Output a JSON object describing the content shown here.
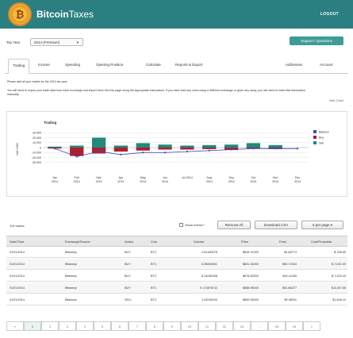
{
  "header": {
    "brand_bold": "Bitcoin",
    "brand_light": "Taxes",
    "logout": "LOGOUT"
  },
  "taxyear": {
    "label": "Tax Year",
    "value": "2014 (Premium)",
    "caret": "▼"
  },
  "support_button": "Support / Questions",
  "tabs": [
    {
      "label": "Trading",
      "active": true
    },
    {
      "label": "Income"
    },
    {
      "label": "Spending"
    },
    {
      "label": "Opening Position"
    },
    {
      "label": "Calculate"
    },
    {
      "label": "Reports & Export"
    },
    {
      "label": "Addresses"
    },
    {
      "label": "Account"
    }
  ],
  "notes": {
    "line1": "Please add all your trades for the 2014 tax year.",
    "line2": "You will need to export your trade data from each exchange and import them into this page using the appropriate instructions. If you have sold any coins using a different exchange or given any away, you will need to enter that information manually.",
    "hide_chart": "Hide Chart"
  },
  "chart_data": {
    "type": "bar",
    "title": "Trading",
    "ylabel": "Net USD",
    "ylim": [
      -40000,
      40000
    ],
    "yticks": [
      "30,000",
      "20,000",
      "10,000",
      "0",
      "-10,000",
      "-20,000",
      "-30,000"
    ],
    "ytick_values": [
      30000,
      20000,
      10000,
      0,
      -10000,
      -20000,
      -30000
    ],
    "categories": [
      "Jan\n2014",
      "Feb\n2014",
      "Mar\n2014",
      "Apr\n2014",
      "May\n2014",
      "Jun\n2014",
      "Jul 2014",
      "Aug\n2014",
      "Sep\n2014",
      "Oct\n2014",
      "Nov\n2014",
      "Dec\n2014"
    ],
    "category_lines": [
      [
        "Jan",
        "2014"
      ],
      [
        "Feb",
        "2014"
      ],
      [
        "Mar",
        "2014"
      ],
      [
        "Apr",
        "2014"
      ],
      [
        "May",
        "2014"
      ],
      [
        "Jun",
        "2014"
      ],
      [
        "Jul 2014",
        ""
      ],
      [
        "Aug",
        "2014"
      ],
      [
        "Sep",
        "2014"
      ],
      [
        "Oct",
        "2014"
      ],
      [
        "Nov",
        "2014"
      ],
      [
        "Dec",
        "2014"
      ]
    ],
    "series": [
      {
        "name": "Balance",
        "type": "line",
        "color": "#3a4fb8",
        "values": [
          -2000,
          -18000,
          -8000,
          -14000,
          -10000,
          -10000,
          -8000,
          -6000,
          -4000,
          -2000,
          -2000,
          -2000
        ]
      },
      {
        "name": "Buy",
        "type": "bar",
        "color": "#b01d2e",
        "values": [
          -2000,
          -17000,
          -12000,
          -8000,
          -6000,
          -4000,
          -4000,
          -3000,
          -5000,
          -2000,
          -3000,
          0
        ]
      },
      {
        "name": "Sell",
        "type": "bar",
        "color": "#1f8a7d",
        "values": [
          2000,
          4000,
          20000,
          4000,
          9000,
          6000,
          4000,
          5000,
          6000,
          9000,
          5000,
          0
        ]
      }
    ],
    "legend": "right"
  },
  "controls": {
    "trades_count": "119 trades",
    "show_memo": "Show memo?",
    "remove_all": "Remove All",
    "download_csv": "Download CSV",
    "per_page": "5 per page ▾"
  },
  "table": {
    "headers": [
      "Date/Time",
      "Exchange/Source",
      "Action",
      "Coin",
      "Volume",
      "Price",
      "Fees",
      "Cost/Proceeds"
    ],
    "rows": [
      [
        "01/01/2014",
        "Bitstamp",
        "BUY",
        "BTC",
        "0.81180678",
        "$828.37000",
        "$4.88774",
        "$-768.65"
      ],
      [
        "01/01/2014",
        "Bitstamp",
        "BUY",
        "BTC",
        "8.35804501",
        "$831.34000",
        "$50.72324",
        "$-7,631.09"
      ],
      [
        "01/01/2014",
        "Bitstamp",
        "BUY",
        "BTC",
        "8.14060408",
        "$878.82000",
        "$44.11055",
        "$-7,200.43"
      ],
      [
        "01/01/2014",
        "Bitstamp",
        "BUY",
        "BTC",
        "9.173878711",
        "$888.96000",
        "$51.88277",
        "$-8,287.66"
      ],
      [
        "01/01/2014",
        "Bitstamp",
        "SELL",
        "BTC",
        "1.93226000",
        "$859.55000",
        "$9.98311",
        "$1,648.19"
      ]
    ]
  },
  "pager": {
    "prev": "«",
    "pages": [
      "1",
      "2",
      "3",
      "4",
      "5",
      "6",
      "7",
      "8",
      "9",
      "10",
      "11",
      "12",
      "13",
      "...",
      "23",
      "24"
    ],
    "next": "»"
  }
}
